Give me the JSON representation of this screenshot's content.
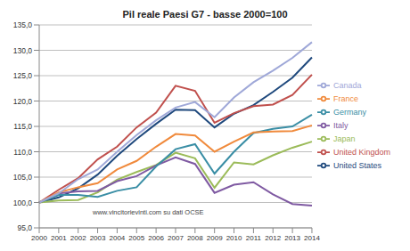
{
  "chart_data": {
    "type": "line",
    "title": "Pil reale Paesi G7 - basse 2000=100",
    "annotation": "www.vincitorievinti.com su dati OCSE",
    "categories": [
      "2000",
      "2001",
      "2002",
      "2003",
      "2004",
      "2005",
      "2006",
      "2007",
      "2008",
      "2009",
      "2010",
      "2011",
      "2012",
      "2013",
      "2014"
    ],
    "series": [
      {
        "name": "United States",
        "color": "#1f497d",
        "values": [
          100,
          101,
          102.8,
          105.5,
          109.2,
          112.5,
          115.5,
          118.3,
          118.2,
          114.8,
          117.5,
          119.2,
          121.8,
          124.6,
          128.6
        ]
      },
      {
        "name": "United Kingdom",
        "color": "#c0504d",
        "values": [
          100,
          102.5,
          104.8,
          108.5,
          111,
          114.8,
          117.7,
          123,
          122,
          115.7,
          117.6,
          119,
          119.3,
          121.2,
          125.2
        ]
      },
      {
        "name": "Japan",
        "color": "#9bbb59",
        "values": [
          100,
          100.4,
          100.5,
          102,
          104.5,
          106,
          107.4,
          109.8,
          108.7,
          102.9,
          107.9,
          107.5,
          109.3,
          110.8,
          112
        ]
      },
      {
        "name": "Italy",
        "color": "#7f5aa2",
        "values": [
          100,
          101.8,
          102.2,
          102.3,
          104.2,
          105.2,
          107.3,
          108.9,
          107.6,
          101.9,
          103.5,
          104,
          101.6,
          99.7,
          99.4
        ]
      },
      {
        "name": "Germany",
        "color": "#3a8ea5",
        "values": [
          100,
          101.5,
          101.5,
          101.1,
          102.3,
          103,
          107.1,
          110.5,
          111.5,
          105.7,
          110,
          113.7,
          114.5,
          115,
          117.3
        ]
      },
      {
        "name": "France",
        "color": "#f08a3c",
        "values": [
          100,
          102,
          103,
          103.8,
          106.5,
          108.2,
          111,
          113.5,
          113.2,
          110,
          112,
          113.8,
          114,
          114.1,
          115.2
        ]
      },
      {
        "name": "Canada",
        "color": "#9fa8d8",
        "values": [
          100,
          101.8,
          104.6,
          106.5,
          110,
          113.3,
          116.2,
          118.7,
          119.8,
          116.8,
          120.7,
          123.7,
          126,
          128.5,
          131.6
        ]
      }
    ],
    "ylim": [
      95,
      135
    ],
    "yticks": [
      {
        "value": 95,
        "label": "95,0"
      },
      {
        "value": 100,
        "label": "100,0"
      },
      {
        "value": 105,
        "label": "105,0"
      },
      {
        "value": 110,
        "label": "110,0"
      },
      {
        "value": 115,
        "label": "115,0"
      },
      {
        "value": 120,
        "label": "120,0"
      },
      {
        "value": 125,
        "label": "125,0"
      },
      {
        "value": 130,
        "label": "130,0"
      },
      {
        "value": 135,
        "label": "135,0"
      }
    ],
    "grid": true,
    "legend": "right"
  }
}
